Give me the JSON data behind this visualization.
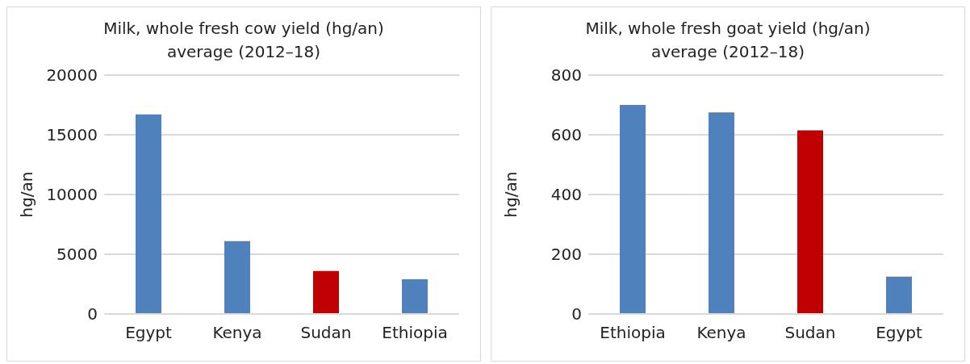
{
  "chart_data": [
    {
      "type": "bar",
      "title": "Milk, whole fresh cow yield (hg/an) average (2012–18)",
      "ylabel": "hg/an",
      "categories": [
        "Egypt",
        "Kenya",
        "Sudan",
        "Ethiopia"
      ],
      "values": [
        16700,
        6100,
        3600,
        2900
      ],
      "colors": [
        "#4f81bd",
        "#4f81bd",
        "#c00000",
        "#4f81bd"
      ],
      "ylim": [
        0,
        20000
      ],
      "yticks": [
        0,
        5000,
        10000,
        15000,
        20000
      ],
      "grid": "y"
    },
    {
      "type": "bar",
      "title": "Milk, whole fresh goat yield (hg/an) average (2012–18)",
      "ylabel": "hg/an",
      "categories": [
        "Ethiopia",
        "Kenya",
        "Sudan",
        "Egypt"
      ],
      "values": [
        700,
        675,
        615,
        125
      ],
      "colors": [
        "#4f81bd",
        "#4f81bd",
        "#c00000",
        "#4f81bd"
      ],
      "ylim": [
        0,
        800
      ],
      "yticks": [
        0,
        200,
        400,
        600,
        800
      ],
      "grid": "y"
    }
  ]
}
